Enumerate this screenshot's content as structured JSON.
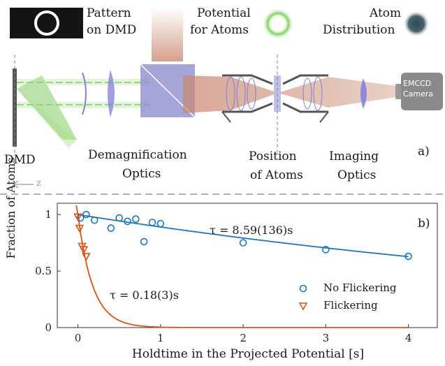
{
  "setup": {
    "top_labels": {
      "pattern": [
        "Pattern",
        "on DMD"
      ],
      "potential": [
        "Potential",
        "for Atoms"
      ],
      "atoms": [
        "Atom",
        "Distribution"
      ]
    },
    "components": {
      "dmd": "DMD",
      "demag": [
        "Demagnification",
        "Optics"
      ],
      "position": [
        "Position",
        "of Atoms"
      ],
      "imaging": [
        "Imaging",
        "Optics"
      ],
      "camera": [
        "EMCCD",
        "Camera"
      ]
    },
    "panel_label": "a)",
    "axis_hint": "z"
  },
  "colors": {
    "green_beam": "#8fd16f",
    "red_beam": "#c98a72",
    "lens": "#7f7fd9",
    "cube": "#8f8fcf",
    "no_flicker": "#1f77b4",
    "flicker": "#d95319"
  },
  "chart_data": {
    "type": "scatter",
    "panel_label": "b)",
    "xlabel": "Holdtime in the Projected Potential [s]",
    "ylabel": "Fraction of Atoms",
    "xlim": [
      -0.25,
      4.35
    ],
    "ylim": [
      0,
      1.1
    ],
    "xticks": [
      "0",
      "1",
      "2",
      "3",
      "4"
    ],
    "yticks": [
      "0",
      "0.5",
      "1"
    ],
    "series": [
      {
        "name": "No Flickering",
        "marker": "circle",
        "x": [
          0.03,
          0.1,
          0.2,
          0.4,
          0.5,
          0.6,
          0.7,
          0.8,
          0.9,
          1.0,
          2.0,
          3.0,
          4.0
        ],
        "y": [
          0.97,
          1.0,
          0.95,
          0.88,
          0.97,
          0.94,
          0.96,
          0.76,
          0.93,
          0.92,
          0.75,
          0.69,
          0.63
        ],
        "fit_tau": 8.59,
        "annotation": "τ = 8.59(136)s"
      },
      {
        "name": "Flickering",
        "marker": "triangle-down",
        "x": [
          0.0,
          0.02,
          0.05,
          0.07,
          0.1
        ],
        "y": [
          0.98,
          0.88,
          0.72,
          0.69,
          0.63
        ],
        "fit_tau": 0.18,
        "annotation": "τ = 0.18(3)s"
      }
    ],
    "legend_position": "lower-right",
    "grid": false
  }
}
